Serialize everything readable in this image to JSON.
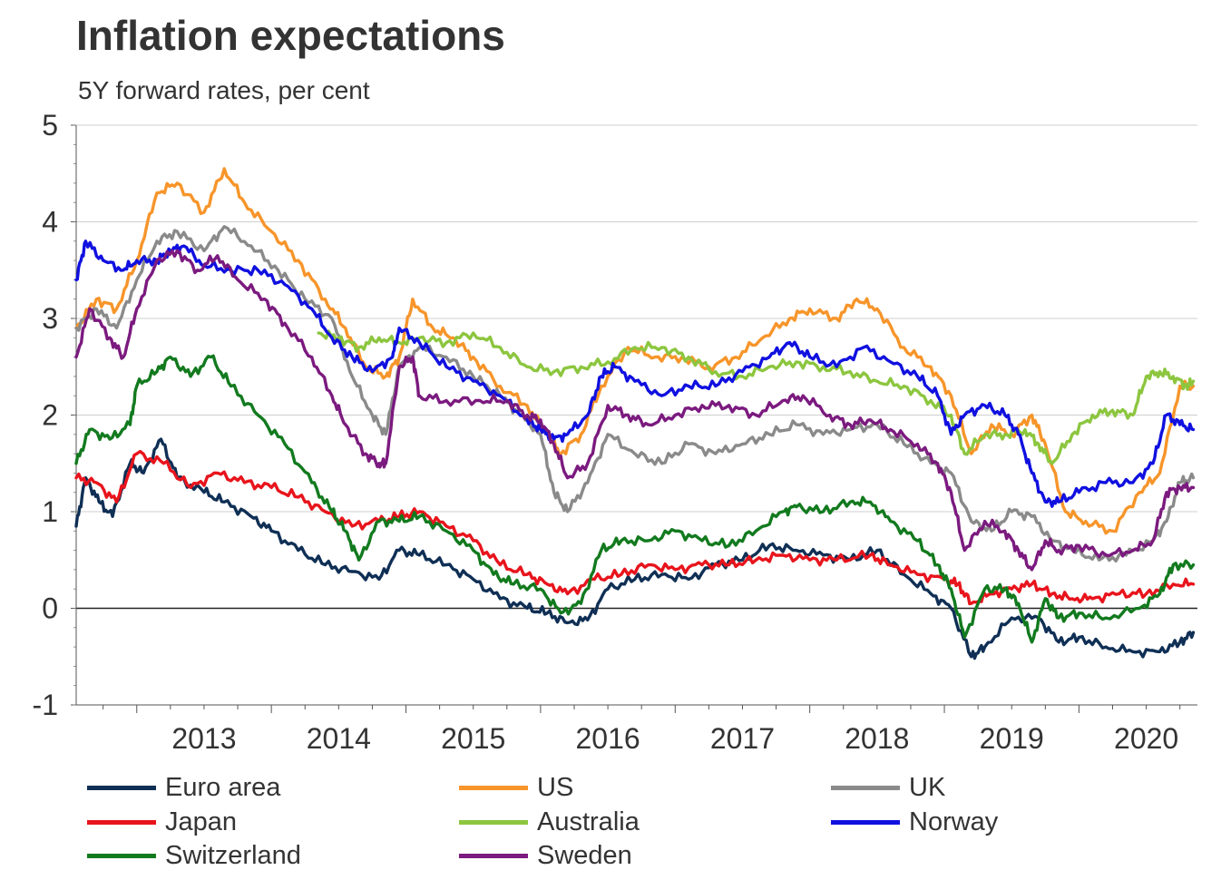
{
  "chart_data": {
    "type": "line",
    "title": "Inflation expectations",
    "subtitle": "5Y forward rates, per cent",
    "ylim": [
      -1,
      5
    ],
    "yticks": [
      -1,
      0,
      1,
      2,
      3,
      4,
      5
    ],
    "xlim": [
      2012.55,
      2020.88
    ],
    "xticks": [
      "2013",
      "2014",
      "2015",
      "2016",
      "2017",
      "2018",
      "2019",
      "2020"
    ],
    "grid": true,
    "legend_position": "bottom",
    "series": [
      {
        "name": "Euro area",
        "color": "#0f2f55",
        "x": [
          2012.55,
          2012.62,
          2012.72,
          2012.82,
          2012.95,
          2013.05,
          2013.18,
          2013.3,
          2013.5,
          2013.65,
          2013.85,
          2014.0,
          2014.2,
          2014.4,
          2014.6,
          2014.8,
          2014.95,
          2015.1,
          2015.3,
          2015.5,
          2015.7,
          2015.9,
          2016.05,
          2016.2,
          2016.35,
          2016.5,
          2016.7,
          2016.9,
          2017.1,
          2017.3,
          2017.5,
          2017.7,
          2017.9,
          2018.1,
          2018.3,
          2018.5,
          2018.7,
          2018.9,
          2019.05,
          2019.2,
          2019.3,
          2019.5,
          2019.7,
          2019.85,
          2020.0,
          2020.2,
          2020.4,
          2020.6,
          2020.75,
          2020.85
        ],
        "y": [
          0.85,
          1.35,
          1.1,
          0.95,
          1.5,
          1.4,
          1.75,
          1.35,
          1.2,
          1.1,
          0.95,
          0.8,
          0.6,
          0.45,
          0.38,
          0.3,
          0.6,
          0.55,
          0.45,
          0.3,
          0.1,
          0.0,
          -0.05,
          -0.15,
          -0.12,
          0.2,
          0.3,
          0.35,
          0.3,
          0.45,
          0.5,
          0.65,
          0.6,
          0.55,
          0.5,
          0.6,
          0.35,
          0.15,
          0.0,
          -0.5,
          -0.4,
          -0.1,
          -0.1,
          -0.35,
          -0.3,
          -0.4,
          -0.45,
          -0.45,
          -0.35,
          -0.25
        ]
      },
      {
        "name": "US",
        "color": "#f7952a",
        "x": [
          2012.55,
          2012.7,
          2012.85,
          2013.0,
          2013.15,
          2013.3,
          2013.5,
          2013.65,
          2013.8,
          2014.0,
          2014.2,
          2014.4,
          2014.55,
          2014.7,
          2014.85,
          2014.95,
          2015.05,
          2015.2,
          2015.35,
          2015.5,
          2015.7,
          2015.9,
          2016.05,
          2016.15,
          2016.3,
          2016.45,
          2016.65,
          2016.85,
          2017.05,
          2017.25,
          2017.45,
          2017.65,
          2017.85,
          2018.0,
          2018.2,
          2018.35,
          2018.5,
          2018.7,
          2018.9,
          2019.05,
          2019.2,
          2019.35,
          2019.5,
          2019.65,
          2019.75,
          2019.9,
          2020.05,
          2020.25,
          2020.45,
          2020.6,
          2020.75,
          2020.85
        ],
        "y": [
          2.9,
          3.2,
          3.1,
          3.6,
          4.3,
          4.4,
          4.1,
          4.55,
          4.2,
          3.9,
          3.6,
          3.2,
          2.9,
          2.5,
          2.4,
          2.6,
          3.2,
          2.9,
          2.8,
          2.6,
          2.3,
          2.1,
          1.8,
          1.6,
          1.8,
          2.3,
          2.7,
          2.6,
          2.6,
          2.5,
          2.6,
          2.8,
          3.0,
          3.1,
          3.0,
          3.2,
          3.1,
          2.7,
          2.5,
          2.2,
          1.6,
          1.9,
          1.8,
          2.0,
          1.7,
          1.0,
          0.9,
          0.8,
          1.2,
          1.4,
          2.3,
          2.3
        ]
      },
      {
        "name": "UK",
        "color": "#8a8a8a",
        "x": [
          2012.55,
          2012.7,
          2012.85,
          2013.0,
          2013.15,
          2013.3,
          2013.5,
          2013.65,
          2013.85,
          2014.05,
          2014.25,
          2014.45,
          2014.6,
          2014.75,
          2014.85,
          2014.95,
          2015.1,
          2015.3,
          2015.5,
          2015.7,
          2015.85,
          2016.0,
          2016.1,
          2016.2,
          2016.35,
          2016.5,
          2016.7,
          2016.9,
          2017.1,
          2017.3,
          2017.5,
          2017.7,
          2017.9,
          2018.1,
          2018.3,
          2018.5,
          2018.7,
          2018.9,
          2019.05,
          2019.2,
          2019.35,
          2019.5,
          2019.65,
          2019.8,
          2019.95,
          2020.15,
          2020.35,
          2020.55,
          2020.65,
          2020.75,
          2020.85
        ],
        "y": [
          2.9,
          3.1,
          2.9,
          3.4,
          3.8,
          3.9,
          3.7,
          3.95,
          3.75,
          3.5,
          3.2,
          3.0,
          2.4,
          2.0,
          1.8,
          2.5,
          2.7,
          2.6,
          2.4,
          2.2,
          2.0,
          1.8,
          1.2,
          1.0,
          1.3,
          1.8,
          1.6,
          1.5,
          1.7,
          1.6,
          1.7,
          1.8,
          1.9,
          1.8,
          1.85,
          1.9,
          1.7,
          1.5,
          1.4,
          0.9,
          0.8,
          1.0,
          0.95,
          0.7,
          0.6,
          0.5,
          0.55,
          0.7,
          0.9,
          1.3,
          1.35
        ]
      },
      {
        "name": "Japan",
        "color": "#e8141c",
        "x": [
          2012.55,
          2012.7,
          2012.85,
          2013.0,
          2013.2,
          2013.4,
          2013.6,
          2013.8,
          2014.0,
          2014.2,
          2014.4,
          2014.6,
          2014.8,
          2014.95,
          2015.1,
          2015.3,
          2015.5,
          2015.7,
          2015.9,
          2016.05,
          2016.2,
          2016.4,
          2016.6,
          2016.8,
          2017.0,
          2017.2,
          2017.4,
          2017.6,
          2017.8,
          2018.0,
          2018.2,
          2018.45,
          2018.6,
          2018.8,
          2019.0,
          2019.1,
          2019.2,
          2019.35,
          2019.5,
          2019.65,
          2019.8,
          2019.95,
          2020.1,
          2020.3,
          2020.5,
          2020.7,
          2020.85
        ],
        "y": [
          1.35,
          1.3,
          1.1,
          1.6,
          1.5,
          1.25,
          1.4,
          1.3,
          1.25,
          1.15,
          1.0,
          0.85,
          0.9,
          0.95,
          1.0,
          0.85,
          0.7,
          0.45,
          0.35,
          0.25,
          0.15,
          0.3,
          0.35,
          0.45,
          0.4,
          0.45,
          0.45,
          0.5,
          0.55,
          0.5,
          0.5,
          0.55,
          0.45,
          0.35,
          0.3,
          0.25,
          0.05,
          0.15,
          0.2,
          0.25,
          0.15,
          0.1,
          0.1,
          0.15,
          0.15,
          0.25,
          0.25
        ]
      },
      {
        "name": "Australia",
        "color": "#8cc63f",
        "x": [
          2014.35,
          2014.5,
          2014.65,
          2014.8,
          2014.95,
          2015.1,
          2015.3,
          2015.5,
          2015.7,
          2015.9,
          2016.1,
          2016.3,
          2016.5,
          2016.7,
          2016.9,
          2017.1,
          2017.3,
          2017.5,
          2017.7,
          2017.9,
          2018.1,
          2018.3,
          2018.5,
          2018.7,
          2018.9,
          2019.05,
          2019.15,
          2019.3,
          2019.45,
          2019.6,
          2019.7,
          2019.8,
          2019.95,
          2020.1,
          2020.25,
          2020.4,
          2020.5,
          2020.6,
          2020.7,
          2020.8,
          2020.85
        ],
        "y": [
          2.85,
          2.8,
          2.7,
          2.8,
          2.75,
          2.8,
          2.75,
          2.85,
          2.7,
          2.5,
          2.45,
          2.5,
          2.55,
          2.7,
          2.7,
          2.6,
          2.45,
          2.4,
          2.5,
          2.55,
          2.5,
          2.45,
          2.35,
          2.3,
          2.15,
          2.0,
          1.6,
          1.8,
          1.8,
          1.85,
          1.7,
          1.5,
          1.8,
          2.0,
          2.05,
          2.0,
          2.4,
          2.45,
          2.4,
          2.3,
          2.35
        ]
      },
      {
        "name": "Norway",
        "color": "#1010e0",
        "x": [
          2012.55,
          2012.62,
          2012.75,
          2012.9,
          2013.0,
          2013.15,
          2013.25,
          2013.35,
          2013.5,
          2013.7,
          2013.9,
          2014.1,
          2014.3,
          2014.45,
          2014.6,
          2014.75,
          2014.9,
          2014.95,
          2015.1,
          2015.3,
          2015.5,
          2015.7,
          2015.9,
          2016.0,
          2016.1,
          2016.2,
          2016.35,
          2016.45,
          2016.55,
          2016.7,
          2016.9,
          2017.1,
          2017.3,
          2017.5,
          2017.7,
          2017.85,
          2018.0,
          2018.2,
          2018.4,
          2018.6,
          2018.8,
          2018.95,
          2019.05,
          2019.15,
          2019.3,
          2019.45,
          2019.55,
          2019.65,
          2019.75,
          2019.85,
          2020.0,
          2020.2,
          2020.4,
          2020.55,
          2020.65,
          2020.75,
          2020.85
        ],
        "y": [
          3.4,
          3.8,
          3.6,
          3.5,
          3.6,
          3.6,
          3.7,
          3.75,
          3.55,
          3.5,
          3.5,
          3.35,
          3.1,
          2.8,
          2.6,
          2.45,
          2.6,
          2.9,
          2.75,
          2.5,
          2.35,
          2.2,
          1.95,
          1.85,
          1.75,
          1.8,
          2.0,
          2.4,
          2.5,
          2.35,
          2.2,
          2.3,
          2.3,
          2.45,
          2.6,
          2.75,
          2.6,
          2.5,
          2.7,
          2.55,
          2.4,
          2.2,
          1.8,
          2.0,
          2.1,
          2.0,
          1.8,
          1.4,
          1.1,
          1.1,
          1.2,
          1.3,
          1.3,
          1.5,
          2.0,
          1.9,
          1.85
        ]
      },
      {
        "name": "Switzerland",
        "color": "#127a1e",
        "x": [
          2012.55,
          2012.65,
          2012.8,
          2012.95,
          2013.0,
          2013.15,
          2013.25,
          2013.4,
          2013.55,
          2013.7,
          2013.9,
          2014.1,
          2014.3,
          2014.45,
          2014.55,
          2014.65,
          2014.8,
          2014.95,
          2015.1,
          2015.3,
          2015.5,
          2015.65,
          2015.8,
          2016.0,
          2016.15,
          2016.3,
          2016.45,
          2016.6,
          2016.8,
          2017.0,
          2017.2,
          2017.4,
          2017.6,
          2017.8,
          2017.9,
          2018.1,
          2018.3,
          2018.45,
          2018.6,
          2018.8,
          2018.95,
          2019.05,
          2019.15,
          2019.3,
          2019.45,
          2019.55,
          2019.65,
          2019.75,
          2019.85,
          2020.0,
          2020.2,
          2020.45,
          2020.6,
          2020.7,
          2020.85
        ],
        "y": [
          1.5,
          1.85,
          1.75,
          1.9,
          2.3,
          2.45,
          2.6,
          2.4,
          2.6,
          2.3,
          2.0,
          1.7,
          1.3,
          1.0,
          0.8,
          0.5,
          0.9,
          0.9,
          0.95,
          0.8,
          0.6,
          0.35,
          0.25,
          0.2,
          -0.05,
          0.05,
          0.6,
          0.7,
          0.7,
          0.8,
          0.7,
          0.65,
          0.8,
          1.0,
          1.05,
          1.0,
          1.1,
          1.1,
          0.9,
          0.7,
          0.45,
          0.2,
          -0.3,
          0.2,
          0.2,
          0.05,
          -0.35,
          0.1,
          -0.1,
          -0.05,
          -0.1,
          0.0,
          0.15,
          0.45,
          0.45
        ]
      },
      {
        "name": "Sweden",
        "color": "#7b1a7f",
        "x": [
          2012.55,
          2012.65,
          2012.8,
          2012.9,
          2013.0,
          2013.15,
          2013.3,
          2013.45,
          2013.6,
          2013.75,
          2013.95,
          2014.1,
          2014.3,
          2014.45,
          2014.55,
          2014.7,
          2014.8,
          2014.85,
          2014.95,
          2015.05,
          2015.1,
          2015.3,
          2015.55,
          2015.75,
          2015.9,
          2016.0,
          2016.1,
          2016.2,
          2016.35,
          2016.5,
          2016.65,
          2016.8,
          2017.0,
          2017.2,
          2017.4,
          2017.6,
          2017.8,
          2017.95,
          2018.15,
          2018.3,
          2018.45,
          2018.6,
          2018.8,
          2018.95,
          2019.05,
          2019.15,
          2019.3,
          2019.45,
          2019.55,
          2019.65,
          2019.75,
          2019.85,
          2020.0,
          2020.2,
          2020.4,
          2020.55,
          2020.65,
          2020.75,
          2020.85
        ],
        "y": [
          2.6,
          3.1,
          2.8,
          2.6,
          3.1,
          3.6,
          3.7,
          3.5,
          3.65,
          3.4,
          3.2,
          2.95,
          2.6,
          2.2,
          1.9,
          1.6,
          1.5,
          1.5,
          2.5,
          2.6,
          2.2,
          2.15,
          2.15,
          2.15,
          2.0,
          1.95,
          1.7,
          1.35,
          1.5,
          2.1,
          2.0,
          1.9,
          2.0,
          2.1,
          2.1,
          2.0,
          2.15,
          2.2,
          2.0,
          1.9,
          1.95,
          1.85,
          1.7,
          1.5,
          1.2,
          0.6,
          0.9,
          0.8,
          0.6,
          0.4,
          0.7,
          0.6,
          0.65,
          0.55,
          0.6,
          0.7,
          1.2,
          1.25,
          1.25
        ]
      }
    ]
  }
}
